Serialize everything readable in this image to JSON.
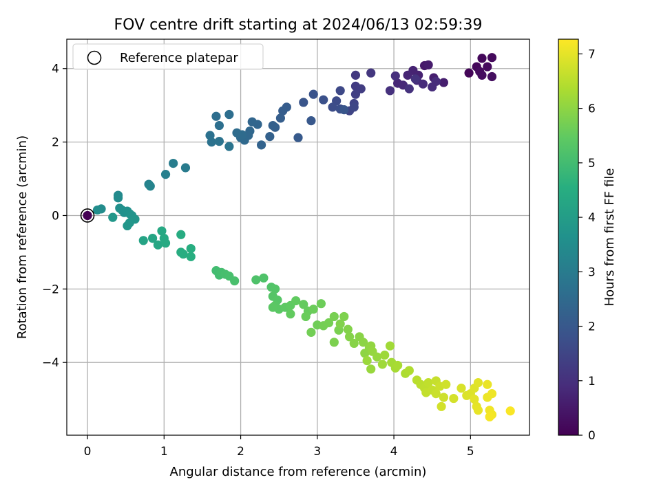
{
  "chart_data": {
    "type": "scatter",
    "title": "FOV centre drift starting at 2024/06/13 02:59:39",
    "xlabel": "Angular distance from reference (arcmin)",
    "ylabel": "Rotation from reference (arcmin)",
    "xlim": [
      -0.27,
      5.77
    ],
    "ylim": [
      -5.98,
      4.8
    ],
    "xticks": [
      0,
      1,
      2,
      3,
      4,
      5
    ],
    "yticks": [
      -4,
      -2,
      0,
      2,
      4
    ],
    "xtick_labels": [
      "0",
      "1",
      "2",
      "3",
      "4",
      "5"
    ],
    "ytick_labels": [
      "−4",
      "−2",
      "0",
      "2",
      "4"
    ],
    "grid": true,
    "legend": {
      "placement": "top-left",
      "entries": [
        {
          "label": "Reference platepar",
          "marker": "open-circle"
        }
      ]
    },
    "colormap": "viridis",
    "colorbar": {
      "label": "Hours from first FF file",
      "range": [
        0,
        7.27
      ],
      "ticks": [
        0,
        1,
        2,
        3,
        4,
        5,
        6,
        7
      ],
      "tick_labels": [
        "0",
        "1",
        "2",
        "3",
        "4",
        "5",
        "6",
        "7"
      ]
    },
    "reference_point": {
      "x": 0,
      "y": 0
    },
    "points": [
      {
        "x": 4.98,
        "y": 3.88,
        "c": 0.1
      },
      {
        "x": 5.08,
        "y": 4.05,
        "c": 0.12
      },
      {
        "x": 5.15,
        "y": 4.28,
        "c": 0.15
      },
      {
        "x": 5.28,
        "y": 4.3,
        "c": 0.18
      },
      {
        "x": 5.22,
        "y": 4.05,
        "c": 0.2
      },
      {
        "x": 5.12,
        "y": 3.92,
        "c": 0.22
      },
      {
        "x": 5.15,
        "y": 3.82,
        "c": 0.25
      },
      {
        "x": 5.28,
        "y": 3.78,
        "c": 0.28
      },
      {
        "x": 4.4,
        "y": 4.08,
        "c": 0.5
      },
      {
        "x": 4.45,
        "y": 4.1,
        "c": 0.55
      },
      {
        "x": 4.65,
        "y": 3.62,
        "c": 0.6
      },
      {
        "x": 4.52,
        "y": 3.75,
        "c": 0.62
      },
      {
        "x": 4.32,
        "y": 3.82,
        "c": 0.68
      },
      {
        "x": 4.25,
        "y": 3.95,
        "c": 0.7
      },
      {
        "x": 4.18,
        "y": 3.82,
        "c": 0.75
      },
      {
        "x": 4.05,
        "y": 3.6,
        "c": 0.8
      },
      {
        "x": 4.12,
        "y": 3.55,
        "c": 0.82
      },
      {
        "x": 4.3,
        "y": 3.68,
        "c": 0.85
      },
      {
        "x": 4.38,
        "y": 3.58,
        "c": 0.88
      },
      {
        "x": 4.5,
        "y": 3.5,
        "c": 0.9
      },
      {
        "x": 4.55,
        "y": 3.65,
        "c": 0.92
      },
      {
        "x": 4.02,
        "y": 3.8,
        "c": 0.95
      },
      {
        "x": 3.95,
        "y": 3.4,
        "c": 1.0
      },
      {
        "x": 4.2,
        "y": 3.45,
        "c": 1.02
      },
      {
        "x": 4.28,
        "y": 3.72,
        "c": 1.05
      },
      {
        "x": 3.7,
        "y": 3.88,
        "c": 1.15
      },
      {
        "x": 3.5,
        "y": 3.82,
        "c": 1.2
      },
      {
        "x": 3.5,
        "y": 3.52,
        "c": 1.25
      },
      {
        "x": 3.57,
        "y": 3.45,
        "c": 1.3
      },
      {
        "x": 3.5,
        "y": 3.3,
        "c": 1.35
      },
      {
        "x": 3.48,
        "y": 3.05,
        "c": 1.45
      },
      {
        "x": 3.42,
        "y": 2.85,
        "c": 1.5
      },
      {
        "x": 3.48,
        "y": 2.95,
        "c": 1.55
      },
      {
        "x": 3.3,
        "y": 3.4,
        "c": 1.6
      },
      {
        "x": 3.25,
        "y": 3.12,
        "c": 1.65
      },
      {
        "x": 3.2,
        "y": 2.95,
        "c": 1.7
      },
      {
        "x": 3.3,
        "y": 2.9,
        "c": 1.75
      },
      {
        "x": 3.08,
        "y": 3.15,
        "c": 1.8
      },
      {
        "x": 2.95,
        "y": 3.3,
        "c": 1.85
      },
      {
        "x": 2.82,
        "y": 3.08,
        "c": 1.9
      },
      {
        "x": 3.35,
        "y": 2.88,
        "c": 1.92
      },
      {
        "x": 2.92,
        "y": 2.58,
        "c": 2.0
      },
      {
        "x": 2.75,
        "y": 2.12,
        "c": 2.05
      },
      {
        "x": 2.6,
        "y": 2.95,
        "c": 2.1
      },
      {
        "x": 2.55,
        "y": 2.85,
        "c": 2.12
      },
      {
        "x": 2.52,
        "y": 2.65,
        "c": 2.15
      },
      {
        "x": 2.45,
        "y": 2.4,
        "c": 2.2
      },
      {
        "x": 2.42,
        "y": 2.45,
        "c": 2.22
      },
      {
        "x": 2.38,
        "y": 2.15,
        "c": 2.25
      },
      {
        "x": 2.27,
        "y": 1.92,
        "c": 2.3
      },
      {
        "x": 2.22,
        "y": 2.48,
        "c": 2.35
      },
      {
        "x": 2.15,
        "y": 2.55,
        "c": 2.38
      },
      {
        "x": 2.12,
        "y": 2.3,
        "c": 2.4
      },
      {
        "x": 2.1,
        "y": 2.18,
        "c": 2.45
      },
      {
        "x": 2.05,
        "y": 2.05,
        "c": 2.48
      },
      {
        "x": 2.0,
        "y": 2.12,
        "c": 2.5
      },
      {
        "x": 2.02,
        "y": 2.2,
        "c": 2.52
      },
      {
        "x": 1.95,
        "y": 2.25,
        "c": 2.55
      },
      {
        "x": 1.85,
        "y": 2.75,
        "c": 2.6
      },
      {
        "x": 1.68,
        "y": 2.7,
        "c": 2.62
      },
      {
        "x": 1.72,
        "y": 2.45,
        "c": 2.65
      },
      {
        "x": 1.6,
        "y": 2.18,
        "c": 2.7
      },
      {
        "x": 1.62,
        "y": 2.0,
        "c": 2.72
      },
      {
        "x": 1.72,
        "y": 2.02,
        "c": 2.75
      },
      {
        "x": 1.85,
        "y": 1.88,
        "c": 2.78
      },
      {
        "x": 1.28,
        "y": 1.3,
        "c": 3.0
      },
      {
        "x": 1.12,
        "y": 1.42,
        "c": 3.05
      },
      {
        "x": 1.02,
        "y": 1.12,
        "c": 3.1
      },
      {
        "x": 0.8,
        "y": 0.85,
        "c": 3.2
      },
      {
        "x": 0.82,
        "y": 0.8,
        "c": 3.25
      },
      {
        "x": 0.4,
        "y": 0.55,
        "c": 3.4
      },
      {
        "x": 0.4,
        "y": 0.48,
        "c": 3.45
      },
      {
        "x": 0.18,
        "y": 0.18,
        "c": 3.5
      },
      {
        "x": 0.13,
        "y": 0.15,
        "c": 3.52
      },
      {
        "x": 0.42,
        "y": 0.2,
        "c": 3.58
      },
      {
        "x": 0.45,
        "y": 0.15,
        "c": 3.6
      },
      {
        "x": 0.48,
        "y": 0.08,
        "c": 3.62
      },
      {
        "x": 0.52,
        "y": 0.12,
        "c": 3.65
      },
      {
        "x": 0.55,
        "y": 0.05,
        "c": 3.68
      },
      {
        "x": 0.58,
        "y": 0.0,
        "c": 3.7
      },
      {
        "x": 0.62,
        "y": -0.1,
        "c": 3.75
      },
      {
        "x": 0.55,
        "y": -0.2,
        "c": 3.78
      },
      {
        "x": 0.52,
        "y": -0.28,
        "c": 3.8
      },
      {
        "x": 0.33,
        "y": -0.05,
        "c": 3.82
      },
      {
        "x": 0.73,
        "y": -0.68,
        "c": 4.2
      },
      {
        "x": 0.85,
        "y": -0.62,
        "c": 4.25
      },
      {
        "x": 0.92,
        "y": -0.8,
        "c": 4.3
      },
      {
        "x": 0.97,
        "y": -0.42,
        "c": 4.35
      },
      {
        "x": 1.0,
        "y": -0.62,
        "c": 4.38
      },
      {
        "x": 1.02,
        "y": -0.75,
        "c": 4.4
      },
      {
        "x": 1.22,
        "y": -0.52,
        "c": 4.45
      },
      {
        "x": 1.22,
        "y": -1.0,
        "c": 4.48
      },
      {
        "x": 1.25,
        "y": -1.05,
        "c": 4.5
      },
      {
        "x": 1.35,
        "y": -0.9,
        "c": 4.52
      },
      {
        "x": 1.35,
        "y": -1.12,
        "c": 4.55
      },
      {
        "x": 1.68,
        "y": -1.5,
        "c": 5.0
      },
      {
        "x": 1.72,
        "y": -1.62,
        "c": 5.02
      },
      {
        "x": 1.75,
        "y": -1.55,
        "c": 5.05
      },
      {
        "x": 1.8,
        "y": -1.6,
        "c": 5.08
      },
      {
        "x": 1.85,
        "y": -1.65,
        "c": 5.1
      },
      {
        "x": 1.92,
        "y": -1.78,
        "c": 5.12
      },
      {
        "x": 2.2,
        "y": -1.75,
        "c": 5.2
      },
      {
        "x": 2.3,
        "y": -1.7,
        "c": 5.22
      },
      {
        "x": 2.4,
        "y": -1.95,
        "c": 5.25
      },
      {
        "x": 2.45,
        "y": -2.0,
        "c": 5.28
      },
      {
        "x": 2.42,
        "y": -2.2,
        "c": 5.3
      },
      {
        "x": 2.48,
        "y": -2.3,
        "c": 5.32
      },
      {
        "x": 2.45,
        "y": -2.45,
        "c": 5.35
      },
      {
        "x": 2.5,
        "y": -2.55,
        "c": 5.38
      },
      {
        "x": 2.42,
        "y": -2.5,
        "c": 5.4
      },
      {
        "x": 2.58,
        "y": -2.5,
        "c": 5.42
      },
      {
        "x": 2.65,
        "y": -2.45,
        "c": 5.45
      },
      {
        "x": 2.72,
        "y": -2.32,
        "c": 5.48
      },
      {
        "x": 2.65,
        "y": -2.68,
        "c": 5.5
      },
      {
        "x": 2.82,
        "y": -2.42,
        "c": 5.52
      },
      {
        "x": 2.88,
        "y": -2.6,
        "c": 5.55
      },
      {
        "x": 2.85,
        "y": -2.75,
        "c": 5.58
      },
      {
        "x": 2.95,
        "y": -2.55,
        "c": 5.6
      },
      {
        "x": 3.05,
        "y": -2.4,
        "c": 5.62
      },
      {
        "x": 3.0,
        "y": -2.98,
        "c": 5.65
      },
      {
        "x": 2.92,
        "y": -3.18,
        "c": 5.68
      },
      {
        "x": 3.08,
        "y": -3.0,
        "c": 5.7
      },
      {
        "x": 3.15,
        "y": -2.92,
        "c": 5.72
      },
      {
        "x": 3.22,
        "y": -2.75,
        "c": 5.75
      },
      {
        "x": 3.28,
        "y": -3.12,
        "c": 5.78
      },
      {
        "x": 3.22,
        "y": -3.45,
        "c": 5.8
      },
      {
        "x": 3.35,
        "y": -2.75,
        "c": 5.82
      },
      {
        "x": 3.3,
        "y": -2.95,
        "c": 5.85
      },
      {
        "x": 3.4,
        "y": -3.1,
        "c": 5.88
      },
      {
        "x": 3.42,
        "y": -3.3,
        "c": 5.9
      },
      {
        "x": 3.48,
        "y": -3.48,
        "c": 5.92
      },
      {
        "x": 3.55,
        "y": -3.3,
        "c": 5.95
      },
      {
        "x": 3.6,
        "y": -3.45,
        "c": 5.98
      },
      {
        "x": 3.62,
        "y": -3.75,
        "c": 6.0
      },
      {
        "x": 3.68,
        "y": -3.6,
        "c": 6.02
      },
      {
        "x": 3.7,
        "y": -3.55,
        "c": 6.05
      },
      {
        "x": 3.72,
        "y": -3.7,
        "c": 6.08
      },
      {
        "x": 3.78,
        "y": -3.85,
        "c": 6.1
      },
      {
        "x": 3.7,
        "y": -4.18,
        "c": 6.12
      },
      {
        "x": 3.65,
        "y": -3.95,
        "c": 6.15
      },
      {
        "x": 3.88,
        "y": -3.8,
        "c": 6.18
      },
      {
        "x": 3.85,
        "y": -4.05,
        "c": 6.2
      },
      {
        "x": 3.95,
        "y": -3.55,
        "c": 6.22
      },
      {
        "x": 3.97,
        "y": -4.0,
        "c": 6.25
      },
      {
        "x": 4.02,
        "y": -4.15,
        "c": 6.28
      },
      {
        "x": 4.05,
        "y": -4.08,
        "c": 6.3
      },
      {
        "x": 4.15,
        "y": -4.3,
        "c": 6.35
      },
      {
        "x": 4.2,
        "y": -4.22,
        "c": 6.38
      },
      {
        "x": 4.3,
        "y": -4.48,
        "c": 6.5
      },
      {
        "x": 4.35,
        "y": -4.6,
        "c": 6.52
      },
      {
        "x": 4.4,
        "y": -4.7,
        "c": 6.55
      },
      {
        "x": 4.45,
        "y": -4.55,
        "c": 6.58
      },
      {
        "x": 4.42,
        "y": -4.82,
        "c": 6.6
      },
      {
        "x": 4.5,
        "y": -4.75,
        "c": 6.62
      },
      {
        "x": 4.55,
        "y": -4.5,
        "c": 6.65
      },
      {
        "x": 4.55,
        "y": -4.85,
        "c": 6.68
      },
      {
        "x": 4.6,
        "y": -4.65,
        "c": 6.7
      },
      {
        "x": 4.65,
        "y": -4.95,
        "c": 6.72
      },
      {
        "x": 4.68,
        "y": -4.6,
        "c": 6.75
      },
      {
        "x": 4.62,
        "y": -5.2,
        "c": 6.78
      },
      {
        "x": 4.78,
        "y": -4.98,
        "c": 6.8
      },
      {
        "x": 4.88,
        "y": -4.7,
        "c": 6.85
      },
      {
        "x": 4.95,
        "y": -4.9,
        "c": 6.88
      },
      {
        "x": 5.0,
        "y": -4.85,
        "c": 6.9
      },
      {
        "x": 5.05,
        "y": -4.7,
        "c": 6.92
      },
      {
        "x": 5.1,
        "y": -4.55,
        "c": 6.95
      },
      {
        "x": 5.05,
        "y": -5.0,
        "c": 6.98
      },
      {
        "x": 5.08,
        "y": -5.2,
        "c": 7.0
      },
      {
        "x": 5.1,
        "y": -5.3,
        "c": 7.02
      },
      {
        "x": 5.22,
        "y": -4.6,
        "c": 7.05
      },
      {
        "x": 5.22,
        "y": -4.95,
        "c": 7.08
      },
      {
        "x": 5.28,
        "y": -4.85,
        "c": 7.1
      },
      {
        "x": 5.25,
        "y": -5.3,
        "c": 7.12
      },
      {
        "x": 5.28,
        "y": -5.42,
        "c": 7.15
      },
      {
        "x": 5.25,
        "y": -5.48,
        "c": 7.18
      },
      {
        "x": 5.52,
        "y": -5.32,
        "c": 7.22
      }
    ]
  }
}
